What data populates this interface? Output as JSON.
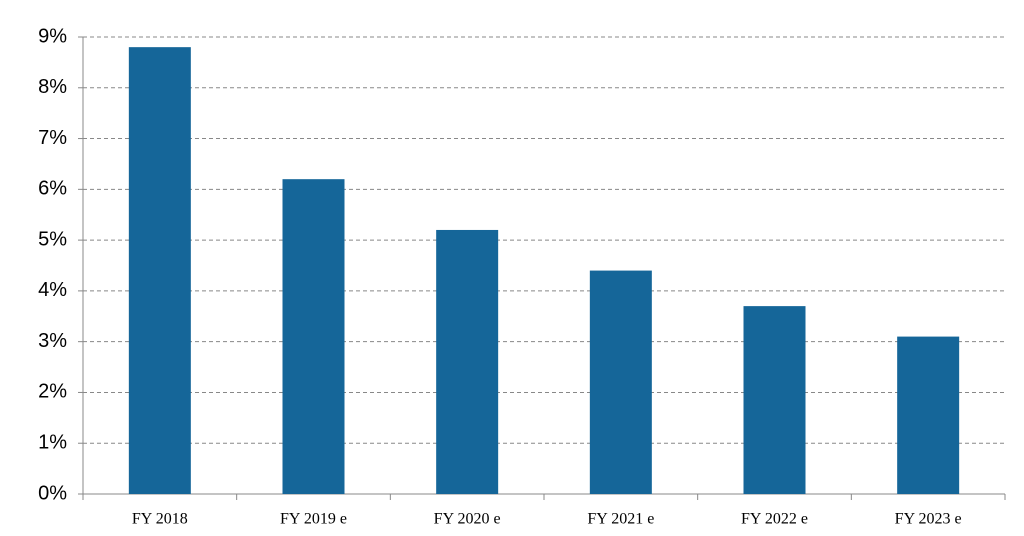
{
  "chart_data": {
    "type": "bar",
    "categories": [
      "FY 2018",
      "FY 2019 e",
      "FY 2020 e",
      "FY 2021 e",
      "FY 2022 e",
      "FY 2023 e"
    ],
    "values": [
      8.8,
      6.2,
      5.2,
      4.4,
      3.7,
      3.1
    ],
    "color": "#156699",
    "ylim": [
      0,
      9
    ],
    "yticks": [
      {
        "value": 0,
        "label": "0%"
      },
      {
        "value": 1,
        "label": "1%"
      },
      {
        "value": 2,
        "label": "2%"
      },
      {
        "value": 3,
        "label": "3%"
      },
      {
        "value": 4,
        "label": "4%"
      },
      {
        "value": 5,
        "label": "5%"
      },
      {
        "value": 6,
        "label": "6%"
      },
      {
        "value": 7,
        "label": "7%"
      },
      {
        "value": 8,
        "label": "8%"
      },
      {
        "value": 9,
        "label": "9%"
      }
    ],
    "grid": true
  }
}
